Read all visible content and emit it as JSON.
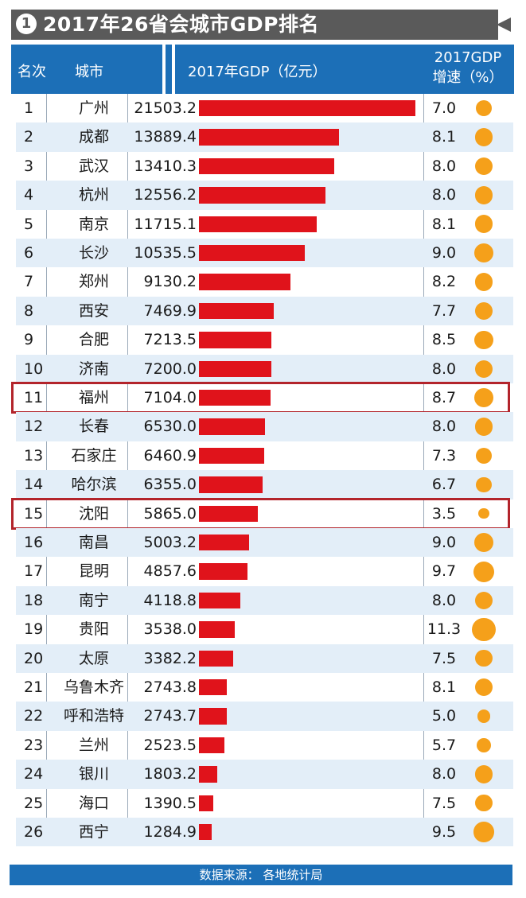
{
  "banner": {
    "number": "1",
    "title": "2017年26省会城市GDP排名"
  },
  "header": {
    "rank": "名次",
    "city": "城市",
    "gdp": "2017年GDP（亿元）",
    "growth_line1": "2017GDP",
    "growth_line2": "增速（%）"
  },
  "colors": {
    "bar": "#e0131b",
    "dot": "#f5a01a",
    "header": "#1c6fb7",
    "highlight": "#b3242b"
  },
  "chart_data": {
    "type": "bar",
    "title": "2017年26省会城市GDP排名",
    "xlabel": "",
    "ylabel": "",
    "columns": [
      "名次",
      "城市",
      "2017年GDP（亿元）",
      "2017GDP增速（%）"
    ],
    "rows": [
      {
        "rank": "1",
        "city": "广州",
        "gdp": "21503.2",
        "growth": "7.0"
      },
      {
        "rank": "2",
        "city": "成都",
        "gdp": "13889.4",
        "growth": "8.1"
      },
      {
        "rank": "3",
        "city": "武汉",
        "gdp": "13410.3",
        "growth": "8.0"
      },
      {
        "rank": "4",
        "city": "杭州",
        "gdp": "12556.2",
        "growth": "8.0"
      },
      {
        "rank": "5",
        "city": "南京",
        "gdp": "11715.1",
        "growth": "8.1"
      },
      {
        "rank": "6",
        "city": "长沙",
        "gdp": "10535.5",
        "growth": "9.0"
      },
      {
        "rank": "7",
        "city": "郑州",
        "gdp": "9130.2",
        "growth": "8.2"
      },
      {
        "rank": "8",
        "city": "西安",
        "gdp": "7469.9",
        "growth": "7.7"
      },
      {
        "rank": "9",
        "city": "合肥",
        "gdp": "7213.5",
        "growth": "8.5"
      },
      {
        "rank": "10",
        "city": "济南",
        "gdp": "7200.0",
        "growth": "8.0"
      },
      {
        "rank": "11",
        "city": "福州",
        "gdp": "7104.0",
        "growth": "8.7",
        "highlight": true
      },
      {
        "rank": "12",
        "city": "长春",
        "gdp": "6530.0",
        "growth": "8.0"
      },
      {
        "rank": "13",
        "city": "石家庄",
        "gdp": "6460.9",
        "growth": "7.3"
      },
      {
        "rank": "14",
        "city": "哈尔滨",
        "gdp": "6355.0",
        "growth": "6.7"
      },
      {
        "rank": "15",
        "city": "沈阳",
        "gdp": "5865.0",
        "growth": "3.5",
        "highlight": true
      },
      {
        "rank": "16",
        "city": "南昌",
        "gdp": "5003.2",
        "growth": "9.0"
      },
      {
        "rank": "17",
        "city": "昆明",
        "gdp": "4857.6",
        "growth": "9.7"
      },
      {
        "rank": "18",
        "city": "南宁",
        "gdp": "4118.8",
        "growth": "8.0"
      },
      {
        "rank": "19",
        "city": "贵阳",
        "gdp": "3538.0",
        "growth": "11.3"
      },
      {
        "rank": "20",
        "city": "太原",
        "gdp": "3382.2",
        "growth": "7.5"
      },
      {
        "rank": "21",
        "city": "乌鲁木齐",
        "gdp": "2743.8",
        "growth": "8.1"
      },
      {
        "rank": "22",
        "city": "呼和浩特",
        "gdp": "2743.7",
        "growth": "5.0"
      },
      {
        "rank": "23",
        "city": "兰州",
        "gdp": "2523.5",
        "growth": "5.7"
      },
      {
        "rank": "24",
        "city": "银川",
        "gdp": "1803.2",
        "growth": "8.0"
      },
      {
        "rank": "25",
        "city": "海口",
        "gdp": "1390.5",
        "growth": "7.5"
      },
      {
        "rank": "26",
        "city": "西宁",
        "gdp": "1284.9",
        "growth": "9.5"
      }
    ]
  },
  "footer": {
    "source": "数据来源： 各地统计局"
  }
}
